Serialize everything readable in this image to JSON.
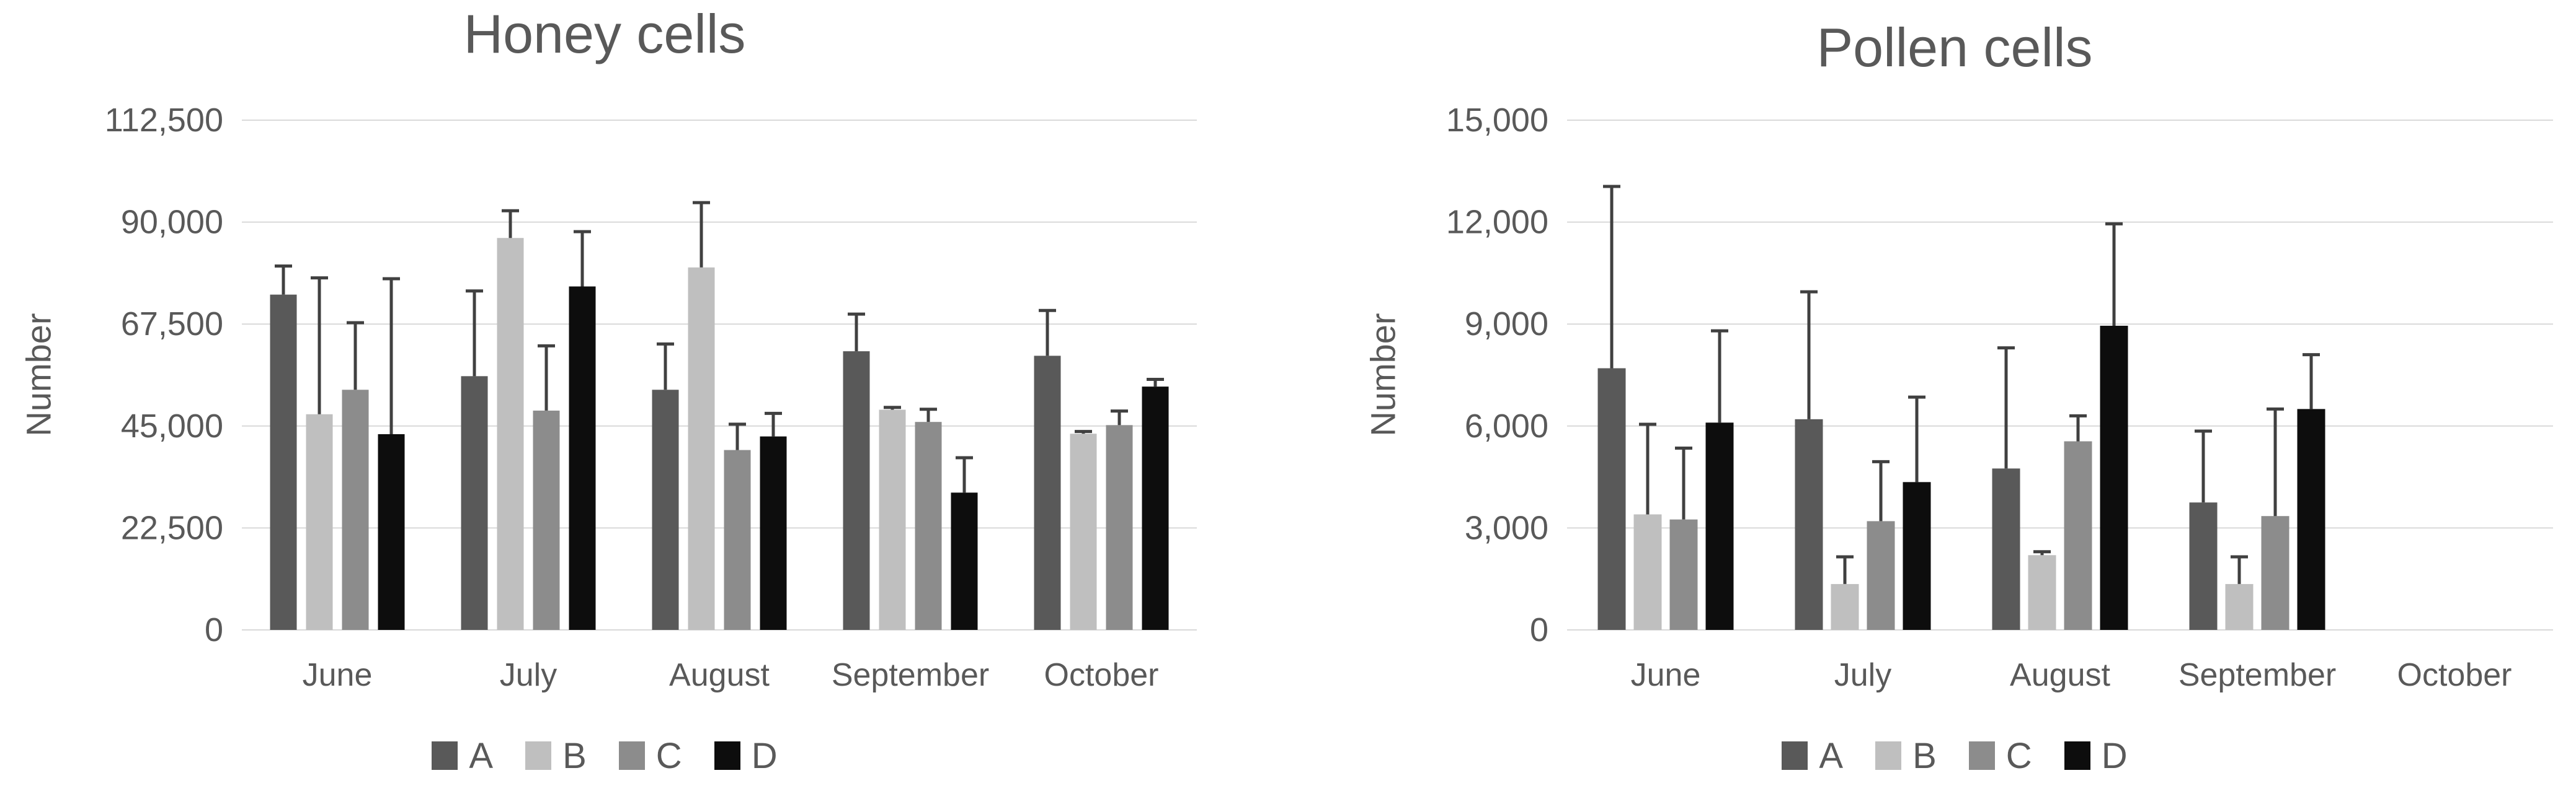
{
  "page": {
    "background": "#ffffff",
    "text_color": "#595959",
    "gridline_color": "#d9d9d9",
    "error_bar_color": "#404040"
  },
  "chart_data": [
    {
      "type": "bar",
      "title": "Honey cells",
      "ylabel": "Number",
      "xlabel": "",
      "categories": [
        "June",
        "July",
        "August",
        "September",
        "October"
      ],
      "ylim": [
        0,
        112500
      ],
      "y_step": 22500,
      "y_ticks": [
        {
          "label": "0",
          "value": 0
        },
        {
          "label": "22,500",
          "value": 22500
        },
        {
          "label": "45,000",
          "value": 45000
        },
        {
          "label": "67,500",
          "value": 67500
        },
        {
          "label": "90,000",
          "value": 90000
        },
        {
          "label": "112,500",
          "value": 112500
        }
      ],
      "grid": true,
      "legend_position": "bottom",
      "error_bars": "plus",
      "series": [
        {
          "name": "A",
          "color": "#595959",
          "values": [
            74000,
            56000,
            53000,
            61500,
            60500
          ],
          "error_top": [
            80300,
            74800,
            63100,
            69700,
            70500
          ]
        },
        {
          "name": "B",
          "color": "#bfbfbf",
          "values": [
            47600,
            86500,
            80000,
            48600,
            43300
          ],
          "error_top": [
            77700,
            92500,
            94300,
            49100,
            43800
          ]
        },
        {
          "name": "C",
          "color": "#8c8c8c",
          "values": [
            53000,
            48400,
            39700,
            45900,
            45200
          ],
          "error_top": [
            67800,
            62700,
            45400,
            48700,
            48300
          ]
        },
        {
          "name": "D",
          "color": "#0d0d0d",
          "values": [
            43200,
            75800,
            42700,
            30300,
            53700
          ],
          "error_top": [
            77500,
            87900,
            47800,
            38000,
            55300
          ]
        }
      ]
    },
    {
      "type": "bar",
      "title": "Pollen cells",
      "ylabel": "Number",
      "xlabel": "",
      "categories": [
        "June",
        "July",
        "August",
        "September",
        "October"
      ],
      "ylim": [
        0,
        15000
      ],
      "y_step": 3000,
      "y_ticks": [
        {
          "label": "0",
          "value": 0
        },
        {
          "label": "3,000",
          "value": 3000
        },
        {
          "label": "6,000",
          "value": 6000
        },
        {
          "label": "9,000",
          "value": 9000
        },
        {
          "label": "12,000",
          "value": 12000
        },
        {
          "label": "15,000",
          "value": 15000
        }
      ],
      "grid": true,
      "legend_position": "bottom",
      "error_bars": "plus",
      "series": [
        {
          "name": "A",
          "color": "#595959",
          "values": [
            7700,
            6200,
            4750,
            3750,
            null
          ],
          "error_top": [
            13050,
            9950,
            8300,
            5850,
            null
          ]
        },
        {
          "name": "B",
          "color": "#bfbfbf",
          "values": [
            3400,
            1350,
            2200,
            1350,
            null
          ],
          "error_top": [
            6050,
            2150,
            2300,
            2150,
            null
          ]
        },
        {
          "name": "C",
          "color": "#8c8c8c",
          "values": [
            3250,
            3200,
            5550,
            3350,
            null
          ],
          "error_top": [
            5350,
            4950,
            6300,
            6500,
            null
          ]
        },
        {
          "name": "D",
          "color": "#0d0d0d",
          "values": [
            6100,
            4350,
            8950,
            6500,
            null
          ],
          "error_top": [
            8800,
            6850,
            11950,
            8100,
            null
          ]
        }
      ]
    }
  ]
}
